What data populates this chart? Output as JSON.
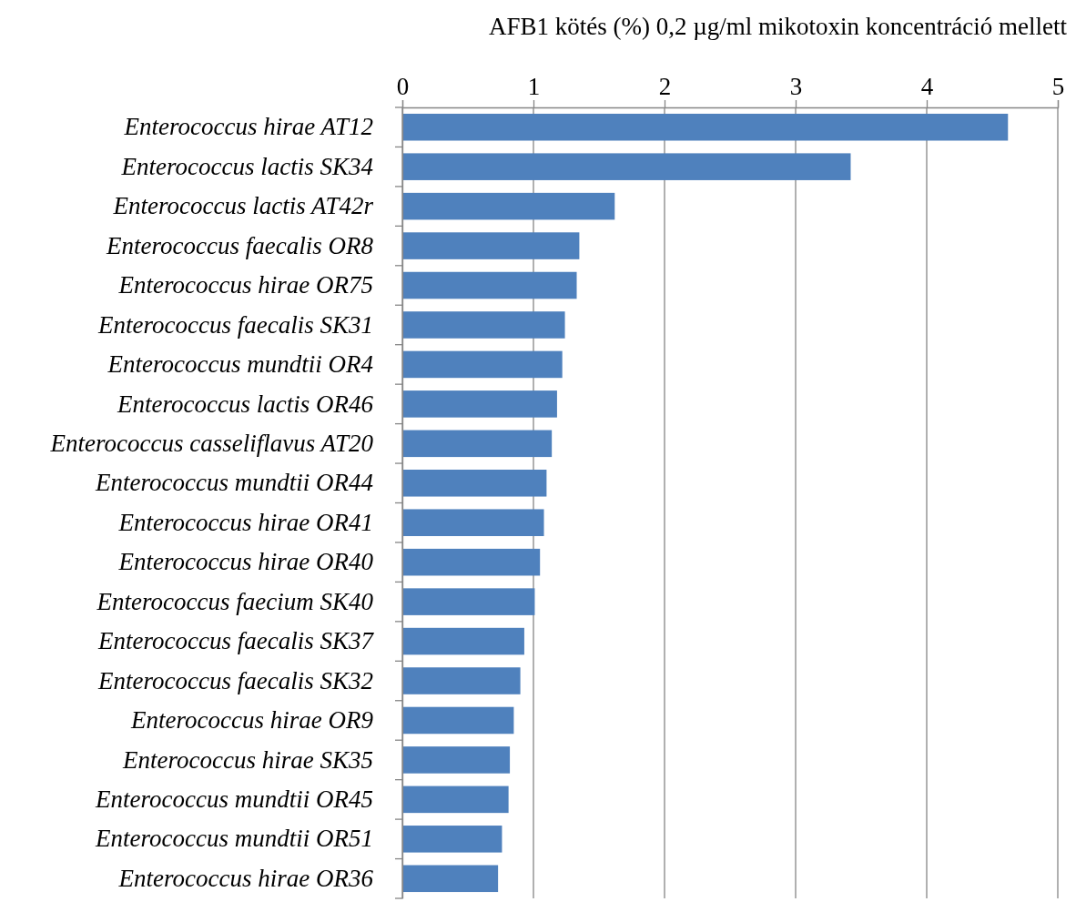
{
  "chart_data": {
    "type": "bar",
    "orientation": "horizontal",
    "xlabel": "AFB1 kötés (%)  0,2 µg/ml mikotoxin koncentráció mellett",
    "categories": [
      "Enterococcus hirae AT12",
      "Enterococcus lactis SK34",
      "Enterococcus lactis AT42r",
      "Enterococcus faecalis  OR8",
      "Enterococcus hirae OR75",
      "Enterococcus faecalis  SK31",
      "Enterococcus mundtii OR4",
      "Enterococcus lactis OR46",
      "Enterococcus casseliflavus  AT20",
      "Enterococcus mundtii OR44",
      "Enterococcus hirae OR41",
      "Enterococcus hirae OR40",
      "Enterococcus faecium SK40",
      "Enterococcus faecalis  SK37",
      "Enterococcus faecalis  SK32",
      "Enterococcus hirae OR9",
      "Enterococcus hirae SK35",
      "Enterococcus mundtii OR45",
      "Enterococcus mundtii OR51",
      "Enterococcus hirae OR36"
    ],
    "values": [
      4.62,
      3.42,
      1.62,
      1.35,
      1.33,
      1.24,
      1.22,
      1.18,
      1.14,
      1.1,
      1.08,
      1.05,
      1.01,
      0.93,
      0.9,
      0.85,
      0.82,
      0.81,
      0.76,
      0.73
    ],
    "color": "#4f81bd",
    "xlim": [
      0,
      5
    ],
    "xticks": [
      0,
      1,
      2,
      3,
      4,
      5
    ],
    "grid": "x"
  }
}
